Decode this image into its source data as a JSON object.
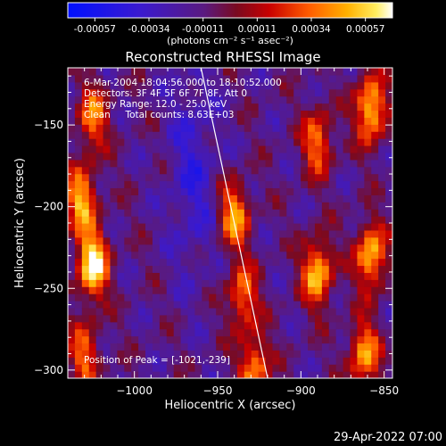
{
  "colorbar": {
    "ticks": [
      "-0.00057",
      "-0.00034",
      "-0.00011",
      "0.00011",
      "0.00034",
      "0.00057"
    ],
    "units_label": "(photons cm⁻² s⁻¹ asec⁻²)"
  },
  "chart_data": {
    "type": "heatmap",
    "title": "Reconstructed RHESSI Image",
    "xlabel": "Heliocentric X (arcsec)",
    "ylabel": "Heliocentric Y (arcsec)",
    "xlim": [
      -1040,
      -845
    ],
    "ylim": [
      -305,
      -115
    ],
    "x_ticks": [
      -1000,
      -950,
      -900,
      -850
    ],
    "y_ticks": [
      -150,
      -200,
      -250,
      -300
    ],
    "x_tick_labels": [
      "−1000",
      "−950",
      "−900",
      "−850"
    ],
    "y_tick_labels": [
      "−150",
      "−200",
      "−250",
      "−300"
    ],
    "value_range": [
      -0.00057,
      0.00057
    ],
    "colormap": "rhessi-blue-purple-red-yellow-white",
    "annotations": [
      "6-Mar-2004 18:04:56.000 to 18:10:52.000",
      "Detectors: 3F 4F 5F 6F 7F 8F, Att 0",
      "Energy Range: 12.0 - 25.0 keV",
      "Clean     Total counts: 8.63E+03"
    ],
    "peak_label": "Position of Peak = [-1021,-239]",
    "limb_line": [
      [
        -960,
        -115
      ],
      [
        -920,
        -305
      ]
    ],
    "bright_regions": [
      {
        "x": -1025,
        "y": -235,
        "level": 1.0
      },
      {
        "x": -1032,
        "y": -195,
        "level": 0.75
      },
      {
        "x": -1025,
        "y": -145,
        "level": 0.6
      },
      {
        "x": -940,
        "y": -205,
        "level": 0.7
      },
      {
        "x": -935,
        "y": -255,
        "level": 0.6
      },
      {
        "x": -928,
        "y": -298,
        "level": 0.65
      },
      {
        "x": -890,
        "y": -240,
        "level": 0.8
      },
      {
        "x": -890,
        "y": -160,
        "level": 0.6
      },
      {
        "x": -858,
        "y": -140,
        "level": 0.85
      },
      {
        "x": -858,
        "y": -230,
        "level": 0.8
      },
      {
        "x": -862,
        "y": -290,
        "level": 0.7
      },
      {
        "x": -1030,
        "y": -290,
        "level": 0.55
      }
    ]
  },
  "footer": {
    "timestamp": "29-Apr-2022 07:00"
  }
}
